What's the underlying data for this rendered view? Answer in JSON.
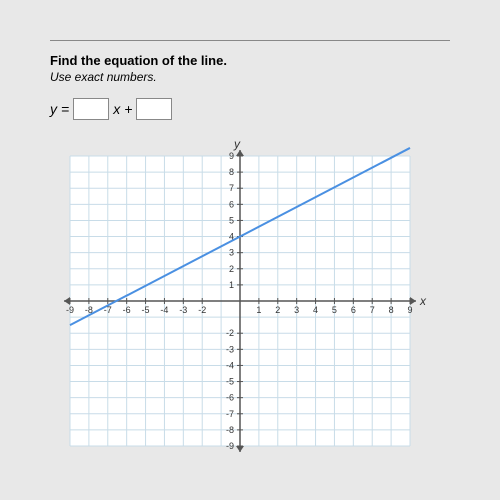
{
  "prompt": {
    "title": "Find the equation of the line.",
    "subtitle": "Use exact numbers."
  },
  "equation": {
    "lhs": "y",
    "eq": "=",
    "var": "x",
    "plus": "+"
  },
  "chart": {
    "type": "line",
    "xlim": [
      -9,
      9
    ],
    "ylim": [
      -9,
      9
    ],
    "xticks": [
      -9,
      -8,
      -7,
      -6,
      -5,
      -4,
      -3,
      -2,
      1,
      2,
      3,
      4,
      5,
      6,
      7,
      8,
      9
    ],
    "yticks_pos": [
      1,
      2,
      3,
      4,
      5,
      6,
      7,
      8,
      9
    ],
    "yticks_neg": [
      -2,
      -3,
      -4,
      -5,
      -6,
      -7,
      -8,
      -9
    ],
    "x_axis_label": "x",
    "y_axis_label": "y",
    "line_points": [
      [
        -9,
        -1.5
      ],
      [
        9,
        9.5
      ]
    ],
    "line_color": "#4a90e2",
    "grid_color": "#c8dce8",
    "axis_color": "#555555",
    "background_color": "#ffffff"
  }
}
